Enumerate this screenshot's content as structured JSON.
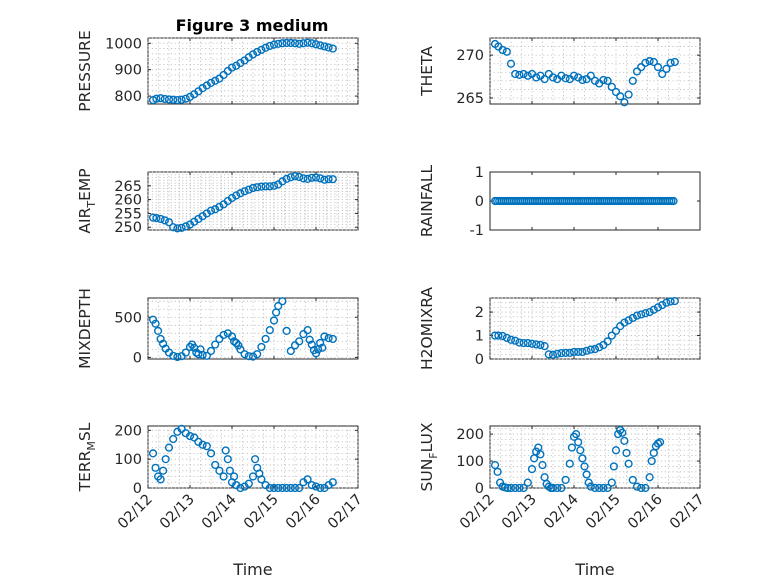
{
  "figure": {
    "title": "Figure 3 medium",
    "background": "#ffffff",
    "marker_color": "#0072BD"
  },
  "chart_data": [
    {
      "type": "scatter",
      "ylabel": "PRESSURE",
      "ylim": [
        770,
        1020
      ],
      "yticks": [
        800,
        900,
        1000
      ],
      "xlim": [
        0,
        5
      ],
      "xticks": [
        0,
        1,
        2,
        3,
        4,
        5
      ],
      "xlabel": "",
      "grid": true,
      "marker": "circle",
      "x": [
        0.12,
        0.2,
        0.3,
        0.4,
        0.5,
        0.6,
        0.7,
        0.8,
        0.9,
        1.0,
        1.1,
        1.2,
        1.3,
        1.4,
        1.5,
        1.6,
        1.7,
        1.8,
        1.9,
        2.0,
        2.1,
        2.2,
        2.3,
        2.4,
        2.5,
        2.6,
        2.7,
        2.8,
        2.9,
        3.0,
        3.1,
        3.2,
        3.3,
        3.4,
        3.5,
        3.6,
        3.7,
        3.8,
        3.9,
        4.0,
        4.1,
        4.2,
        4.3,
        4.4
      ],
      "y": [
        785,
        790,
        792,
        789,
        787,
        786,
        785,
        786,
        790,
        797,
        807,
        818,
        830,
        840,
        850,
        858,
        866,
        880,
        895,
        908,
        915,
        925,
        935,
        947,
        958,
        967,
        975,
        983,
        990,
        995,
        998,
        1000,
        1001,
        1001,
        1000,
        998,
        1000,
        1002,
        1000,
        996,
        992,
        988,
        984,
        980
      ]
    },
    {
      "type": "scatter",
      "ylabel": "THETA",
      "ylim": [
        264.3,
        272
      ],
      "yticks": [
        265,
        270
      ],
      "xlim": [
        0,
        5
      ],
      "xticks": [
        0,
        1,
        2,
        3,
        4,
        5
      ],
      "xlabel": "",
      "grid": true,
      "marker": "circle",
      "x": [
        0.12,
        0.2,
        0.3,
        0.4,
        0.5,
        0.6,
        0.7,
        0.8,
        0.9,
        1.0,
        1.1,
        1.2,
        1.3,
        1.4,
        1.5,
        1.6,
        1.7,
        1.8,
        1.9,
        2.0,
        2.1,
        2.2,
        2.3,
        2.4,
        2.5,
        2.6,
        2.7,
        2.8,
        2.9,
        3.0,
        3.1,
        3.2,
        3.3,
        3.4,
        3.5,
        3.6,
        3.7,
        3.8,
        3.9,
        4.0,
        4.1,
        4.2,
        4.3,
        4.4
      ],
      "y": [
        271.3,
        271,
        270.6,
        270.4,
        269,
        267.8,
        267.7,
        267.8,
        267.6,
        267.8,
        267.4,
        267.6,
        267.2,
        267.8,
        267.4,
        267.2,
        267.6,
        267.3,
        267.2,
        267.6,
        267.4,
        267.1,
        267.2,
        267.6,
        267,
        266.7,
        267.1,
        267,
        266.3,
        265.7,
        265.2,
        264.5,
        265.4,
        267,
        268.1,
        268.6,
        269.1,
        269.3,
        269.2,
        268.6,
        267.8,
        268.4,
        269.1,
        269.2
      ]
    },
    {
      "type": "scatter",
      "ylabel": "AIR_TEMP",
      "ylim": [
        249,
        270
      ],
      "yticks": [
        250,
        255,
        260,
        265
      ],
      "xlim": [
        0,
        5
      ],
      "xticks": [
        0,
        1,
        2,
        3,
        4,
        5
      ],
      "xlabel": "",
      "grid": true,
      "marker": "circle",
      "x": [
        0.12,
        0.2,
        0.3,
        0.4,
        0.5,
        0.6,
        0.7,
        0.8,
        0.9,
        1.0,
        1.1,
        1.2,
        1.3,
        1.4,
        1.5,
        1.6,
        1.7,
        1.8,
        1.9,
        2.0,
        2.1,
        2.2,
        2.3,
        2.4,
        2.5,
        2.6,
        2.7,
        2.8,
        2.9,
        3.0,
        3.1,
        3.2,
        3.3,
        3.4,
        3.5,
        3.6,
        3.7,
        3.8,
        3.9,
        4.0,
        4.1,
        4.2,
        4.3,
        4.4
      ],
      "y": [
        253.5,
        253.3,
        253,
        252.5,
        251.8,
        250,
        249.6,
        249.8,
        250.3,
        251,
        252,
        253,
        254,
        255,
        256,
        256.5,
        257.4,
        258.3,
        259.5,
        260.6,
        261.5,
        262.3,
        263,
        263.6,
        264.2,
        264.5,
        264.7,
        264.8,
        264.8,
        265,
        265.5,
        266.6,
        267.5,
        268.1,
        268.5,
        268.2,
        267.7,
        267.5,
        267.9,
        268,
        267.7,
        267.2,
        267.4,
        267.4
      ]
    },
    {
      "type": "scatter",
      "ylabel": "RAINFALL",
      "ylim": [
        -1,
        1
      ],
      "yticks": [
        -1,
        0,
        1
      ],
      "xlim": [
        0,
        5
      ],
      "xticks": [
        0,
        1,
        2,
        3,
        4,
        5
      ],
      "xlabel": "",
      "grid": false,
      "marker": "circle",
      "x": [
        0.12,
        0.2,
        0.3,
        0.4,
        0.5,
        0.6,
        0.7,
        0.8,
        0.9,
        1.0,
        1.1,
        1.2,
        1.3,
        1.4,
        1.5,
        1.6,
        1.7,
        1.8,
        1.9,
        2.0,
        2.1,
        2.2,
        2.3,
        2.4,
        2.5,
        2.6,
        2.7,
        2.8,
        2.9,
        3.0,
        3.1,
        3.2,
        3.3,
        3.4,
        3.5,
        3.6,
        3.7,
        3.8,
        3.9,
        4.0,
        4.1,
        4.2,
        4.3,
        4.4
      ],
      "y": [
        0,
        0,
        0,
        0,
        0,
        0,
        0,
        0,
        0,
        0,
        0,
        0,
        0,
        0,
        0,
        0,
        0,
        0,
        0,
        0,
        0,
        0,
        0,
        0,
        0,
        0,
        0,
        0,
        0,
        0,
        0,
        0,
        0,
        0,
        0,
        0,
        0,
        0,
        0,
        0,
        0,
        0,
        0,
        0
      ]
    },
    {
      "type": "scatter",
      "ylabel": "MIXDEPTH",
      "ylim": [
        -20,
        740
      ],
      "yticks": [
        0,
        500
      ],
      "xlim": [
        0,
        5
      ],
      "xticks": [
        0,
        1,
        2,
        3,
        4,
        5
      ],
      "xlabel": "",
      "grid": true,
      "marker": "circle",
      "x": [
        0.12,
        0.18,
        0.24,
        0.3,
        0.36,
        0.42,
        0.5,
        0.6,
        0.7,
        0.8,
        0.9,
        1.0,
        1.05,
        1.1,
        1.15,
        1.2,
        1.25,
        1.3,
        1.4,
        1.5,
        1.6,
        1.7,
        1.8,
        1.9,
        2.0,
        2.05,
        2.1,
        2.15,
        2.2,
        2.3,
        2.4,
        2.5,
        2.6,
        2.7,
        2.8,
        2.9,
        3.0,
        3.05,
        3.1,
        3.2,
        3.3,
        3.4,
        3.5,
        3.6,
        3.7,
        3.8,
        3.85,
        3.9,
        3.95,
        4.0,
        4.05,
        4.1,
        4.15,
        4.2,
        4.3,
        4.4
      ],
      "y": [
        470,
        420,
        330,
        230,
        170,
        110,
        60,
        20,
        5,
        15,
        60,
        130,
        160,
        120,
        60,
        40,
        100,
        30,
        20,
        80,
        160,
        230,
        280,
        300,
        260,
        200,
        180,
        150,
        100,
        40,
        15,
        10,
        40,
        130,
        230,
        340,
        460,
        560,
        640,
        700,
        330,
        80,
        150,
        200,
        290,
        340,
        220,
        160,
        90,
        50,
        100,
        180,
        120,
        260,
        240,
        230
      ]
    },
    {
      "type": "scatter",
      "ylabel": "H2OMIXRA",
      "ylim": [
        0,
        2.6
      ],
      "yticks": [
        0,
        1,
        2
      ],
      "xlim": [
        0,
        5
      ],
      "xticks": [
        0,
        1,
        2,
        3,
        4,
        5
      ],
      "xlabel": "",
      "grid": true,
      "marker": "circle",
      "x": [
        0.12,
        0.2,
        0.3,
        0.4,
        0.5,
        0.6,
        0.7,
        0.8,
        0.9,
        1.0,
        1.1,
        1.2,
        1.3,
        1.4,
        1.5,
        1.6,
        1.7,
        1.8,
        1.9,
        2.0,
        2.1,
        2.2,
        2.3,
        2.4,
        2.5,
        2.6,
        2.7,
        2.8,
        2.9,
        3.0,
        3.1,
        3.2,
        3.3,
        3.4,
        3.5,
        3.6,
        3.7,
        3.8,
        3.9,
        4.0,
        4.1,
        4.2,
        4.3,
        4.4
      ],
      "y": [
        1.0,
        1.0,
        0.98,
        0.9,
        0.82,
        0.78,
        0.7,
        0.68,
        0.68,
        0.65,
        0.62,
        0.6,
        0.55,
        0.2,
        0.18,
        0.22,
        0.25,
        0.26,
        0.26,
        0.3,
        0.3,
        0.3,
        0.35,
        0.4,
        0.42,
        0.5,
        0.6,
        0.75,
        1.0,
        1.2,
        1.4,
        1.55,
        1.65,
        1.75,
        1.85,
        1.9,
        1.95,
        2.0,
        2.1,
        2.2,
        2.3,
        2.4,
        2.45,
        2.47
      ]
    },
    {
      "type": "scatter",
      "ylabel": "TERR_MSL",
      "ylim": [
        0,
        215
      ],
      "yticks": [
        0,
        100,
        200
      ],
      "xlim": [
        0,
        5
      ],
      "xticks": [
        0,
        1,
        2,
        3,
        4,
        5
      ],
      "xlabel": "Time",
      "grid": true,
      "marker": "circle",
      "xticklabels": [
        "02/12",
        "02/13",
        "02/14",
        "02/15",
        "02/16",
        "02/17"
      ],
      "x": [
        0.12,
        0.18,
        0.24,
        0.3,
        0.36,
        0.42,
        0.5,
        0.6,
        0.7,
        0.8,
        0.9,
        1.0,
        1.1,
        1.2,
        1.3,
        1.4,
        1.5,
        1.6,
        1.7,
        1.8,
        1.85,
        1.9,
        1.95,
        2.0,
        2.05,
        2.1,
        2.2,
        2.3,
        2.4,
        2.5,
        2.55,
        2.6,
        2.65,
        2.7,
        2.8,
        2.9,
        3.0,
        3.1,
        3.2,
        3.3,
        3.4,
        3.5,
        3.6,
        3.7,
        3.8,
        3.9,
        4.0,
        4.1,
        4.2,
        4.3,
        4.4
      ],
      "y": [
        120,
        70,
        40,
        30,
        60,
        100,
        140,
        170,
        195,
        205,
        190,
        180,
        175,
        160,
        150,
        145,
        120,
        80,
        60,
        40,
        130,
        100,
        60,
        20,
        40,
        10,
        0,
        5,
        15,
        40,
        100,
        70,
        50,
        30,
        10,
        0,
        0,
        0,
        0,
        0,
        0,
        0,
        0,
        20,
        30,
        10,
        5,
        0,
        0,
        10,
        20
      ]
    },
    {
      "type": "scatter",
      "ylabel": "SUN_FLUX",
      "ylim": [
        0,
        230
      ],
      "yticks": [
        0,
        100,
        200
      ],
      "xlim": [
        0,
        5
      ],
      "xticks": [
        0,
        1,
        2,
        3,
        4,
        5
      ],
      "xlabel": "Time",
      "grid": true,
      "marker": "circle",
      "xticklabels": [
        "02/12",
        "02/13",
        "02/14",
        "02/15",
        "02/16",
        "02/17"
      ],
      "x": [
        0.12,
        0.18,
        0.24,
        0.3,
        0.36,
        0.42,
        0.5,
        0.6,
        0.7,
        0.8,
        0.9,
        1.0,
        1.05,
        1.1,
        1.15,
        1.2,
        1.25,
        1.3,
        1.35,
        1.4,
        1.45,
        1.5,
        1.6,
        1.7,
        1.8,
        1.9,
        1.95,
        2.0,
        2.05,
        2.1,
        2.15,
        2.2,
        2.25,
        2.3,
        2.35,
        2.4,
        2.5,
        2.6,
        2.7,
        2.8,
        2.9,
        2.95,
        3.0,
        3.05,
        3.1,
        3.15,
        3.2,
        3.25,
        3.3,
        3.4,
        3.5,
        3.6,
        3.7,
        3.8,
        3.85,
        3.9,
        3.95,
        4.0,
        4.05
      ],
      "y": [
        85,
        60,
        20,
        5,
        2,
        0,
        0,
        0,
        0,
        0,
        20,
        70,
        110,
        135,
        150,
        125,
        85,
        40,
        15,
        5,
        0,
        0,
        0,
        0,
        30,
        90,
        150,
        190,
        200,
        170,
        140,
        110,
        80,
        50,
        20,
        5,
        0,
        0,
        0,
        0,
        20,
        80,
        140,
        200,
        215,
        205,
        175,
        130,
        90,
        30,
        5,
        0,
        0,
        40,
        100,
        130,
        155,
        165,
        170
      ]
    }
  ]
}
